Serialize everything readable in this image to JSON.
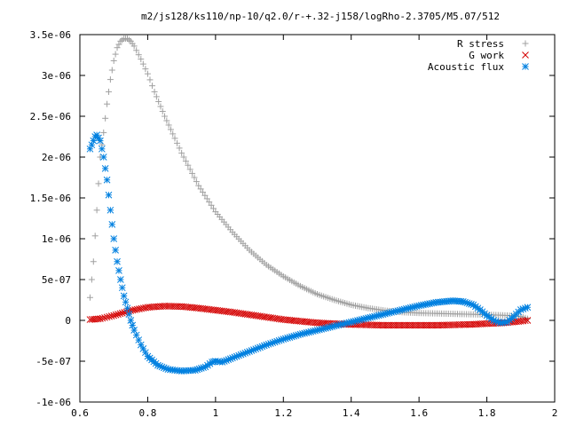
{
  "chart_data": {
    "type": "scatter",
    "title": "m2/js128/ks110/np-10/q2.0/r-+.32-j158/logRho-2.3705/M5.07/512",
    "xlim": [
      0.6,
      2.0
    ],
    "ylim": [
      -1e-06,
      3.5e-06
    ],
    "x_ticks": [
      0.6,
      0.8,
      1.0,
      1.2,
      1.4,
      1.6,
      1.8,
      2.0
    ],
    "x_tick_labels": [
      "0.6",
      "0.8",
      "1",
      "1.2",
      "1.4",
      "1.6",
      "1.8",
      "2"
    ],
    "y_ticks": [
      -1e-06,
      -5e-07,
      0,
      5e-07,
      1e-06,
      1.5e-06,
      2e-06,
      2.5e-06,
      3e-06,
      3.5e-06
    ],
    "y_tick_labels": [
      "-1e-06",
      "-5e-07",
      "0",
      "5e-07",
      "1e-06",
      "1.5e-06",
      "2e-06",
      "2.5e-06",
      "3e-06",
      "3.5e-06"
    ],
    "grid": false,
    "legend_position": "top-right",
    "series": [
      {
        "name": "R stress",
        "marker": "plus",
        "color": "#a0a0a0",
        "x": [
          0.63,
          0.64,
          0.65,
          0.66,
          0.67,
          0.68,
          0.69,
          0.7,
          0.71,
          0.72,
          0.73,
          0.74,
          0.75,
          0.76,
          0.78,
          0.8,
          0.82,
          0.85,
          0.88,
          0.9,
          0.95,
          1.0,
          1.05,
          1.1,
          1.15,
          1.2,
          1.25,
          1.3,
          1.35,
          1.4,
          1.45,
          1.5,
          1.55,
          1.6,
          1.7,
          1.8,
          1.86,
          1.9,
          1.92
        ],
        "y": [
          2.8e-07,
          7.2e-07,
          1.35e-06,
          2e-06,
          2.3e-06,
          2.65e-06,
          2.95e-06,
          3.18e-06,
          3.34e-06,
          3.42e-06,
          3.45e-06,
          3.45e-06,
          3.42e-06,
          3.36e-06,
          3.2e-06,
          3.02e-06,
          2.8e-06,
          2.5e-06,
          2.23e-06,
          2.05e-06,
          1.65e-06,
          1.33e-06,
          1.08e-06,
          8.6e-07,
          6.8e-07,
          5.4e-07,
          4.2e-07,
          3.2e-07,
          2.5e-07,
          1.9e-07,
          1.5e-07,
          1.2e-07,
          1e-07,
          9e-08,
          8e-08,
          7e-08,
          6e-08,
          5e-08,
          2e-08
        ]
      },
      {
        "name": "G work",
        "marker": "cross",
        "color": "#d40000",
        "x": [
          0.63,
          0.66,
          0.7,
          0.75,
          0.8,
          0.85,
          0.9,
          0.95,
          1.0,
          1.05,
          1.1,
          1.15,
          1.2,
          1.25,
          1.3,
          1.35,
          1.4,
          1.45,
          1.5,
          1.55,
          1.6,
          1.65,
          1.7,
          1.75,
          1.8,
          1.85,
          1.9,
          1.92
        ],
        "y": [
          1e-08,
          2e-08,
          6e-08,
          1.2e-07,
          1.6e-07,
          1.75e-07,
          1.7e-07,
          1.5e-07,
          1.25e-07,
          1e-07,
          7e-08,
          4e-08,
          1e-08,
          -1e-08,
          -3e-08,
          -4e-08,
          -5e-08,
          -5.5e-08,
          -6e-08,
          -6e-08,
          -6e-08,
          -6e-08,
          -5.5e-08,
          -5e-08,
          -4e-08,
          -3e-08,
          -1e-08,
          0.0
        ]
      },
      {
        "name": "Acoustic flux",
        "marker": "star",
        "color": "#0080e0",
        "x": [
          0.63,
          0.64,
          0.645,
          0.65,
          0.66,
          0.67,
          0.68,
          0.69,
          0.7,
          0.71,
          0.72,
          0.73,
          0.74,
          0.75,
          0.76,
          0.78,
          0.8,
          0.83,
          0.86,
          0.9,
          0.94,
          0.97,
          0.99,
          1.0,
          1.02,
          1.05,
          1.1,
          1.15,
          1.2,
          1.25,
          1.3,
          1.35,
          1.4,
          1.45,
          1.5,
          1.55,
          1.6,
          1.65,
          1.7,
          1.73,
          1.76,
          1.78,
          1.8,
          1.82,
          1.84,
          1.86,
          1.88,
          1.9,
          1.92
        ],
        "y": [
          2.1e-06,
          2.2e-06,
          2.25e-06,
          2.27e-06,
          2.2e-06,
          2e-06,
          1.72e-06,
          1.35e-06,
          1e-06,
          7.2e-07,
          5e-07,
          3e-07,
          1.5e-07,
          0.0,
          -1.2e-07,
          -3e-07,
          -4.4e-07,
          -5.5e-07,
          -6e-07,
          -6.2e-07,
          -6.1e-07,
          -5.7e-07,
          -5.1e-07,
          -5e-07,
          -5.1e-07,
          -4.6e-07,
          -3.8e-07,
          -3e-07,
          -2.3e-07,
          -1.7e-07,
          -1.2e-07,
          -7e-08,
          -2e-08,
          3e-08,
          8e-08,
          1.3e-07,
          1.8e-07,
          2.2e-07,
          2.4e-07,
          2.3e-07,
          1.9e-07,
          1.3e-07,
          6e-08,
          0.0,
          -3e-08,
          -2e-08,
          5e-08,
          1.3e-07,
          1.6e-07
        ]
      }
    ]
  }
}
